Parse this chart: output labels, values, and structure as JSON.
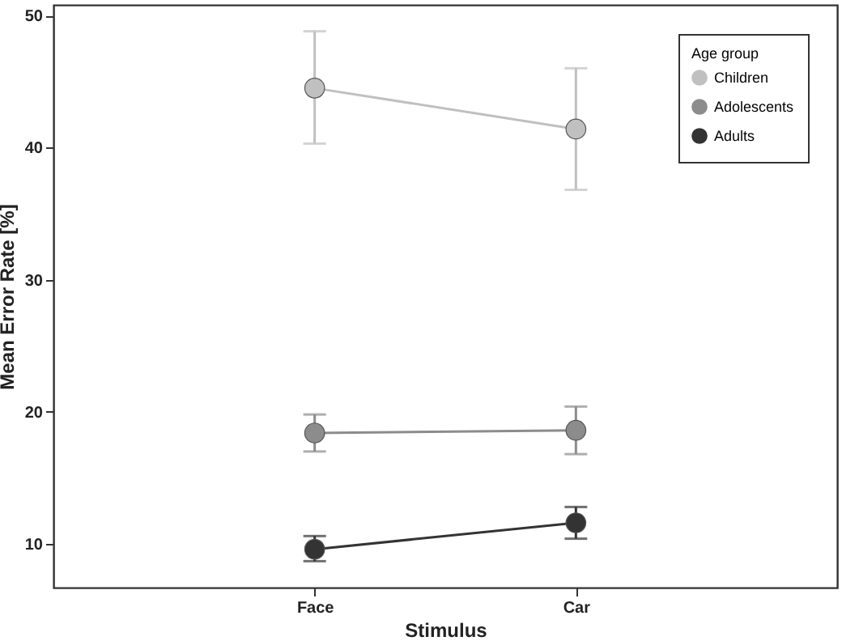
{
  "chart_data": {
    "type": "line",
    "xlabel": "Stimulus",
    "ylabel": "Mean Error Rate [%]",
    "legend_title": "Age group",
    "categories": [
      "Face",
      "Car"
    ],
    "series": [
      {
        "name": "Children",
        "color": "#c0c0c0",
        "values": [
          44.5,
          41.4
        ],
        "errors": [
          [
            40.3,
            48.8
          ],
          [
            36.8,
            46.0
          ]
        ]
      },
      {
        "name": "Adolescents",
        "color": "#8c8c8c",
        "values": [
          18.4,
          18.6
        ],
        "errors": [
          [
            17.0,
            19.8
          ],
          [
            16.8,
            20.4
          ]
        ]
      },
      {
        "name": "Adults",
        "color": "#333333",
        "values": [
          9.6,
          11.6
        ],
        "errors": [
          [
            8.7,
            10.6
          ],
          [
            10.4,
            12.8
          ]
        ]
      }
    ],
    "ylim": [
      6.7,
      50.8
    ],
    "yticks": [
      10,
      20,
      30,
      40,
      50
    ],
    "grid": false,
    "legend": "top right",
    "marker": "circle",
    "line_style": "solid"
  }
}
